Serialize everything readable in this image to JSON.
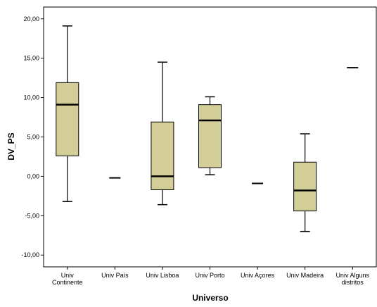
{
  "chart_data": {
    "type": "boxplot",
    "xlabel": "Universo",
    "ylabel": "DV_PS",
    "ylim": [
      -11.5,
      21.5
    ],
    "yticks": [
      {
        "value": -10,
        "label": "-10,00"
      },
      {
        "value": -5,
        "label": "-5,00"
      },
      {
        "value": 0,
        "label": "0,00"
      },
      {
        "value": 5,
        "label": "5,00"
      },
      {
        "value": 10,
        "label": "10,00"
      },
      {
        "value": 15,
        "label": "15,00"
      },
      {
        "value": 20,
        "label": "20,00"
      }
    ],
    "grid": false,
    "box_color": "#d3ce97",
    "categories": [
      {
        "lines": [
          "Univ",
          "Continente"
        ]
      },
      {
        "lines": [
          "Univ País"
        ]
      },
      {
        "lines": [
          "Univ Lisboa"
        ]
      },
      {
        "lines": [
          "Univ Porto"
        ]
      },
      {
        "lines": [
          "Univ Açores"
        ]
      },
      {
        "lines": [
          "Univ Madeira"
        ]
      },
      {
        "lines": [
          "Univ Alguns",
          "distritos"
        ]
      }
    ],
    "boxes": [
      {
        "min": -3.2,
        "q1": 2.6,
        "median": 9.1,
        "q3": 11.9,
        "max": 19.1
      },
      {
        "single": -0.2
      },
      {
        "min": -3.6,
        "q1": -1.7,
        "median": 0.0,
        "q3": 6.9,
        "max": 14.5
      },
      {
        "min": 0.2,
        "q1": 1.1,
        "median": 7.1,
        "q3": 9.1,
        "max": 10.1
      },
      {
        "single": -0.9
      },
      {
        "min": -7.0,
        "q1": -4.4,
        "median": -1.8,
        "q3": 1.8,
        "max": 5.4
      },
      {
        "single": 13.8
      }
    ]
  }
}
